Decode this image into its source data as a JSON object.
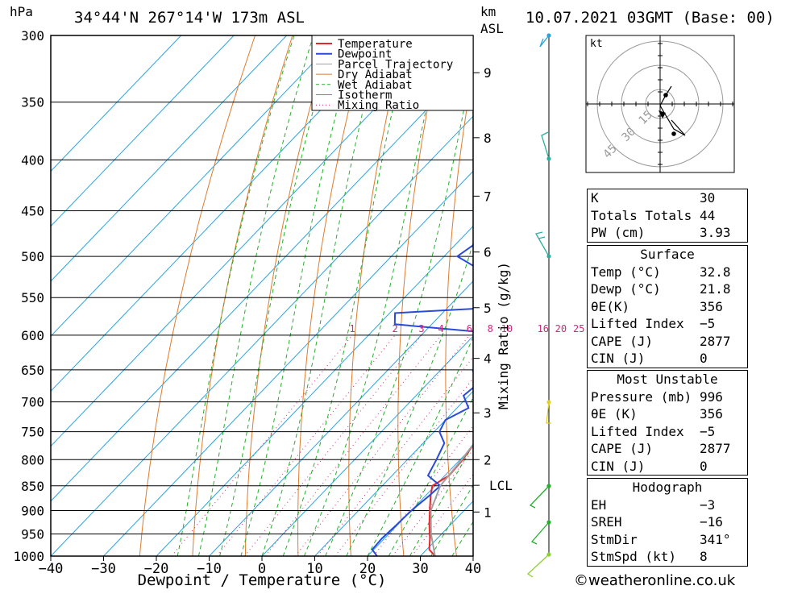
{
  "header": {
    "hpa_label": "hPa",
    "location": "34°44'N  267°14'W  173m  ASL",
    "km_label": "km",
    "asl_label": "ASL",
    "datetime": "10.07.2021  03GMT  (Base: 00)"
  },
  "chart_data": {
    "type": "line",
    "xlabel": "Dewpoint / Temperature (°C)",
    "x_ticks": [
      -40,
      -30,
      -20,
      -10,
      0,
      10,
      20,
      30,
      40
    ],
    "xlim": [
      -40,
      40
    ],
    "pressure_levels": [
      300,
      350,
      400,
      450,
      500,
      550,
      600,
      650,
      700,
      750,
      800,
      850,
      900,
      950,
      1000
    ],
    "ylim": [
      1000,
      300
    ],
    "y_scale": "log",
    "km_ticks": [
      {
        "label": "9",
        "p": 327
      },
      {
        "label": "8",
        "p": 380
      },
      {
        "label": "7",
        "p": 435
      },
      {
        "label": "6",
        "p": 495
      },
      {
        "label": "5",
        "p": 563
      },
      {
        "label": "4",
        "p": 633
      },
      {
        "label": "3",
        "p": 718
      },
      {
        "label": "2",
        "p": 800
      },
      {
        "label": "LCL",
        "p": 849
      },
      {
        "label": "1",
        "p": 903
      }
    ],
    "mixing_ratio_label": "Mixing Ratio (g/kg)",
    "mixing_ratio_values": [
      "1",
      "2",
      "3",
      "4",
      "6",
      "8",
      "10",
      "16",
      "20",
      "25"
    ],
    "legend": [
      "Temperature",
      "Dewpoint",
      "Parcel Trajectory",
      "Dry Adiabat",
      "Wet Adiabat",
      "Isotherm",
      "Mixing Ratio"
    ],
    "series": [
      {
        "name": "Temperature",
        "color": "#e8262b",
        "p": [
          1000,
          985,
          960,
          930,
          900,
          870,
          850,
          830,
          800,
          770,
          750,
          720,
          700,
          680,
          650,
          630,
          610,
          600,
          580,
          560,
          530,
          510,
          500,
          480,
          460,
          440,
          420,
          400,
          380,
          360,
          340,
          320,
          300
        ],
        "t": [
          32.8,
          30.5,
          28.6,
          26.0,
          23.5,
          21.0,
          19.5,
          20.8,
          20.5,
          19.7,
          19.0,
          17.0,
          15.6,
          13.7,
          11.5,
          10.2,
          9.7,
          8.5,
          7.5,
          7.0,
          4.5,
          5.0,
          4.2,
          2.3,
          0.4,
          -1.4,
          -2.5,
          -3.3,
          -5.2,
          -7.3,
          -9.3,
          -11.0,
          -12.6
        ]
      },
      {
        "name": "Dewpoint",
        "color": "#2a4bd9",
        "p": [
          1000,
          985,
          960,
          930,
          900,
          870,
          850,
          830,
          800,
          770,
          750,
          730,
          710,
          690,
          670,
          650,
          630,
          615,
          600,
          585,
          570,
          560,
          540,
          520,
          500,
          480,
          460,
          440,
          420,
          400,
          385,
          365,
          350,
          335,
          320,
          300
        ],
        "t": [
          21.8,
          19.7,
          19.5,
          19.8,
          20.0,
          20.7,
          21.0,
          16.8,
          15.5,
          14.0,
          11.0,
          10.0,
          12.2,
          9.0,
          9.6,
          6.0,
          8.8,
          5.7,
          7.8,
          -17.0,
          -19.0,
          6.0,
          4.5,
          -9.0,
          -17.5,
          -16.0,
          -12.0,
          -0.2,
          0.0,
          3.5,
          0.2,
          0.8,
          -7.0,
          -15.5,
          -17.5,
          -17.5
        ]
      },
      {
        "name": "Parcel Trajectory",
        "color": "#a0a0a0",
        "p": [
          1000,
          950,
          900,
          850,
          800,
          750,
          700,
          650,
          600,
          550,
          500,
          450,
          400,
          365
        ],
        "t": [
          32.8,
          28.0,
          23.7,
          21.0,
          20.3,
          19.2,
          17.7,
          15.7,
          13.0,
          9.5,
          5.0,
          -0.8,
          -8.0,
          -13.2
        ]
      }
    ]
  },
  "legend_colors": {
    "Temperature": "#e8262b",
    "Dewpoint": "#2a4bd9",
    "Parcel Trajectory": "#a0a0a0",
    "Dry Adiabat": "#e07b2b",
    "Wet Adiabat": "#25b02c",
    "Isotherm": "#2aa4e0",
    "Mixing Ratio": "#d4267a"
  },
  "hodograph": {
    "unit_label": "kt",
    "ring_labels": [
      "15",
      "30",
      "45"
    ]
  },
  "indices": {
    "rows": [
      {
        "label": "K",
        "value": "30"
      },
      {
        "label": "Totals Totals",
        "value": "44"
      },
      {
        "label": "PW (cm)",
        "value": "3.93"
      }
    ]
  },
  "surface": {
    "title": "Surface",
    "rows": [
      {
        "label": "Temp (°C)",
        "value": "32.8"
      },
      {
        "label": "Dewp (°C)",
        "value": "21.8"
      },
      {
        "label": "θE(K)",
        "value": "356"
      },
      {
        "label": "Lifted Index",
        "value": "-5"
      },
      {
        "label": "CAPE (J)",
        "value": "2877"
      },
      {
        "label": "CIN (J)",
        "value": "0"
      }
    ]
  },
  "most_unstable": {
    "title": "Most Unstable",
    "rows": [
      {
        "label": "Pressure (mb)",
        "value": "996"
      },
      {
        "label": "θE (K)",
        "value": "356"
      },
      {
        "label": "Lifted Index",
        "value": "-5"
      },
      {
        "label": "CAPE (J)",
        "value": "2877"
      },
      {
        "label": "CIN (J)",
        "value": "0"
      }
    ]
  },
  "hodograph_table": {
    "title": "Hodograph",
    "rows": [
      {
        "label": "EH",
        "value": "-3"
      },
      {
        "label": "SREH",
        "value": "-16"
      },
      {
        "label": "StmDir",
        "value": "341°"
      },
      {
        "label": "StmSpd (kt)",
        "value": "8"
      }
    ]
  },
  "footer": {
    "copyright_symbol": "©",
    "site": "weatheronline.co.uk"
  }
}
